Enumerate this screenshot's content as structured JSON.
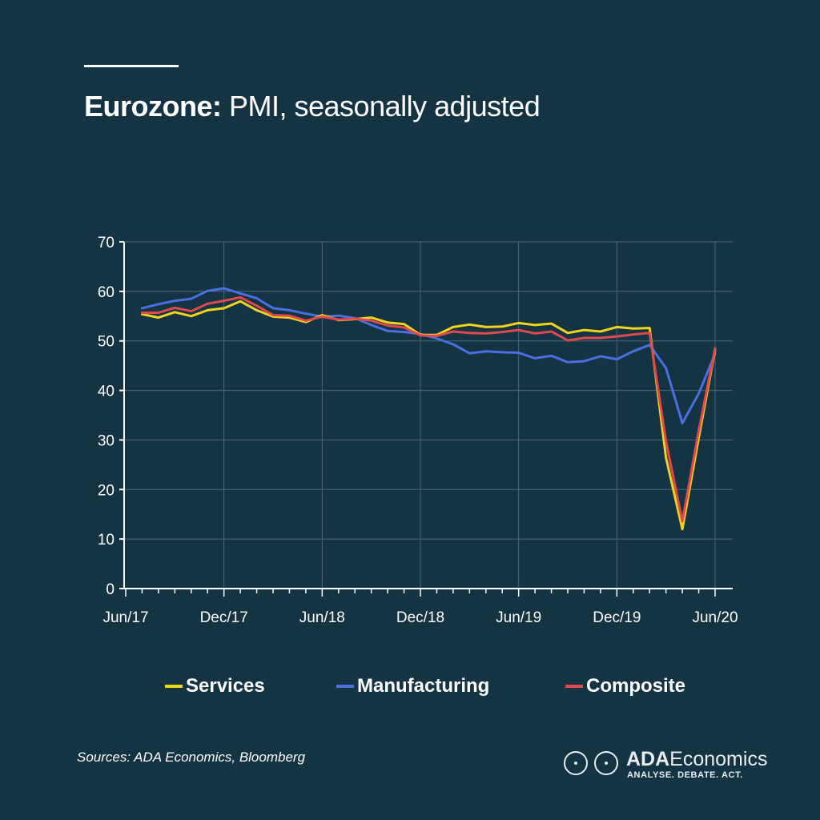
{
  "header": {
    "title_bold": "Eurozone:",
    "title_rest": " PMI, seasonally adjusted"
  },
  "footer": {
    "sources": "Sources: ADA Economics, Bloomberg",
    "logo_name_bold": "ADA",
    "logo_name_rest": "Economics",
    "logo_tagline": "ANALYSE. DEBATE. ACT."
  },
  "colors": {
    "background": "#143444",
    "grid": "#4d6878",
    "axis": "#ffffff",
    "services": "#f1d31c",
    "manufacturing": "#4a6fe0",
    "composite": "#e0484c"
  },
  "chart_data": {
    "type": "line",
    "title": "Eurozone: PMI, seasonally adjusted",
    "xlabel": "",
    "ylabel": "",
    "ylim": [
      0,
      70
    ],
    "yticks": [
      0,
      10,
      20,
      30,
      40,
      50,
      60,
      70
    ],
    "xtick_labels": [
      "Jun/17",
      "Dec/17",
      "Jun/18",
      "Dec/18",
      "Jun/19",
      "Dec/19",
      "Jun/20"
    ],
    "x": [
      "Jul/17",
      "Aug/17",
      "Sep/17",
      "Oct/17",
      "Nov/17",
      "Dec/17",
      "Jan/18",
      "Feb/18",
      "Mar/18",
      "Apr/18",
      "May/18",
      "Jun/18",
      "Jul/18",
      "Aug/18",
      "Sep/18",
      "Oct/18",
      "Nov/18",
      "Dec/18",
      "Jan/19",
      "Feb/19",
      "Mar/19",
      "Apr/19",
      "May/19",
      "Jun/19",
      "Jul/19",
      "Aug/19",
      "Sep/19",
      "Oct/19",
      "Nov/19",
      "Dec/19",
      "Jan/20",
      "Feb/20",
      "Mar/20",
      "Apr/20",
      "May/20",
      "Jun/20"
    ],
    "grid": true,
    "legend_position": "bottom",
    "series": [
      {
        "name": "Services",
        "color": "#f1d31c",
        "values": [
          55.4,
          54.7,
          55.8,
          55.0,
          56.2,
          56.6,
          58.0,
          56.2,
          54.9,
          54.7,
          53.8,
          55.2,
          54.2,
          54.4,
          54.7,
          53.7,
          53.4,
          51.2,
          51.2,
          52.8,
          53.3,
          52.8,
          52.9,
          53.6,
          53.2,
          53.5,
          51.6,
          52.2,
          51.9,
          52.8,
          52.5,
          52.6,
          26.4,
          12.0,
          30.5,
          48.3
        ]
      },
      {
        "name": "Manufacturing",
        "color": "#4a6fe0",
        "values": [
          56.6,
          57.4,
          58.1,
          58.5,
          60.1,
          60.6,
          59.6,
          58.6,
          56.6,
          56.2,
          55.5,
          54.9,
          55.1,
          54.6,
          53.2,
          52.0,
          51.8,
          51.4,
          50.5,
          49.3,
          47.5,
          47.9,
          47.7,
          47.6,
          46.5,
          47.0,
          45.7,
          45.9,
          46.9,
          46.3,
          47.9,
          49.2,
          44.5,
          33.4,
          39.4,
          47.4
        ]
      },
      {
        "name": "Composite",
        "color": "#e0484c",
        "values": [
          55.7,
          55.7,
          56.7,
          56.0,
          57.5,
          58.1,
          58.8,
          57.1,
          55.2,
          55.1,
          54.1,
          54.9,
          54.3,
          54.5,
          54.1,
          53.1,
          52.7,
          51.1,
          51.0,
          51.9,
          51.6,
          51.5,
          51.8,
          52.2,
          51.5,
          51.9,
          50.1,
          50.6,
          50.6,
          50.9,
          51.3,
          51.6,
          29.7,
          13.6,
          31.9,
          48.5
        ]
      }
    ]
  }
}
